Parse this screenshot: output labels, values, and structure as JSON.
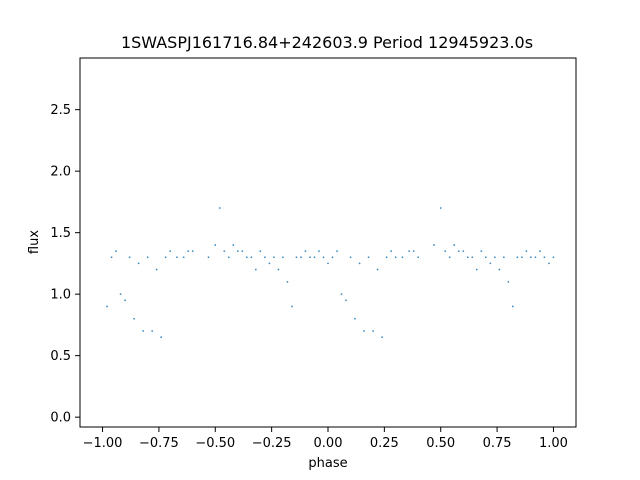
{
  "chart_data": {
    "type": "scatter",
    "title": "1SWASPJ161716.84+242603.9 Period 12945923.0s",
    "xlabel": "phase",
    "ylabel": "flux",
    "xlim": [
      -1.1,
      1.1
    ],
    "ylim": [
      -0.08,
      2.92
    ],
    "xticks": [
      -1.0,
      -0.75,
      -0.5,
      -0.25,
      0.0,
      0.25,
      0.5,
      0.75,
      1.0
    ],
    "xtick_labels": [
      "−1.00",
      "−0.75",
      "−0.50",
      "−0.25",
      "0.00",
      "0.25",
      "0.50",
      "0.75",
      "1.00"
    ],
    "yticks": [
      0.0,
      0.5,
      1.0,
      1.5,
      2.0,
      2.5
    ],
    "ytick_labels": [
      "0.0",
      "0.5",
      "1.0",
      "1.5",
      "2.0",
      "2.5"
    ],
    "grid": false,
    "legend": false,
    "marker_color": "#1f77b4",
    "series": [
      {
        "x": [
          -0.98,
          -0.96,
          -0.94,
          -0.92,
          -0.9,
          -0.88,
          -0.86,
          -0.84,
          -0.82,
          -0.8,
          -0.78,
          -0.76,
          -0.74,
          -0.72,
          -0.7,
          -0.67,
          -0.64,
          -0.62,
          -0.6,
          -0.53,
          -0.5,
          -0.48,
          -0.46,
          -0.44,
          -0.42,
          -0.4,
          -0.38,
          -0.36,
          -0.34,
          -0.32,
          -0.3,
          -0.28,
          -0.26,
          -0.24,
          -0.22,
          -0.2,
          -0.18,
          -0.16,
          -0.14,
          -0.12,
          -0.1,
          -0.08,
          -0.06,
          -0.04,
          -0.02,
          0.0,
          0.02,
          0.04,
          0.06,
          0.08,
          0.1,
          0.12,
          0.14,
          0.16,
          0.18,
          0.2,
          0.22,
          0.24,
          0.26,
          0.28,
          0.3,
          0.33,
          0.36,
          0.38,
          0.4,
          0.47,
          0.5,
          0.52,
          0.54,
          0.56,
          0.58,
          0.6,
          0.62,
          0.64,
          0.66,
          0.68,
          0.7,
          0.72,
          0.74,
          0.76,
          0.78,
          0.8,
          0.82,
          0.84,
          0.86,
          0.88,
          0.9,
          0.92,
          0.94,
          0.96,
          0.98,
          1.0
        ],
        "y": [
          0.9,
          1.3,
          1.35,
          1.0,
          0.95,
          1.3,
          0.8,
          1.25,
          0.7,
          1.3,
          0.7,
          1.2,
          0.65,
          1.3,
          1.35,
          1.3,
          1.3,
          1.35,
          1.35,
          1.3,
          1.4,
          1.7,
          1.35,
          1.3,
          1.4,
          1.35,
          1.35,
          1.3,
          1.3,
          1.2,
          1.35,
          1.3,
          1.25,
          1.3,
          1.2,
          1.3,
          1.1,
          0.9,
          1.3,
          1.3,
          1.35,
          1.3,
          1.3,
          1.35,
          1.3,
          1.25,
          1.3,
          1.35,
          1.0,
          0.95,
          1.3,
          0.8,
          1.25,
          0.7,
          1.3,
          0.7,
          1.2,
          0.65,
          1.3,
          1.35,
          1.3,
          1.3,
          1.35,
          1.35,
          1.3,
          1.4,
          1.7,
          1.35,
          1.3,
          1.4,
          1.35,
          1.35,
          1.3,
          1.3,
          1.2,
          1.35,
          1.3,
          1.25,
          1.3,
          1.2,
          1.3,
          1.1,
          0.9,
          1.3,
          1.3,
          1.35,
          1.3,
          1.3,
          1.35,
          1.3,
          1.25,
          1.3
        ]
      }
    ]
  }
}
